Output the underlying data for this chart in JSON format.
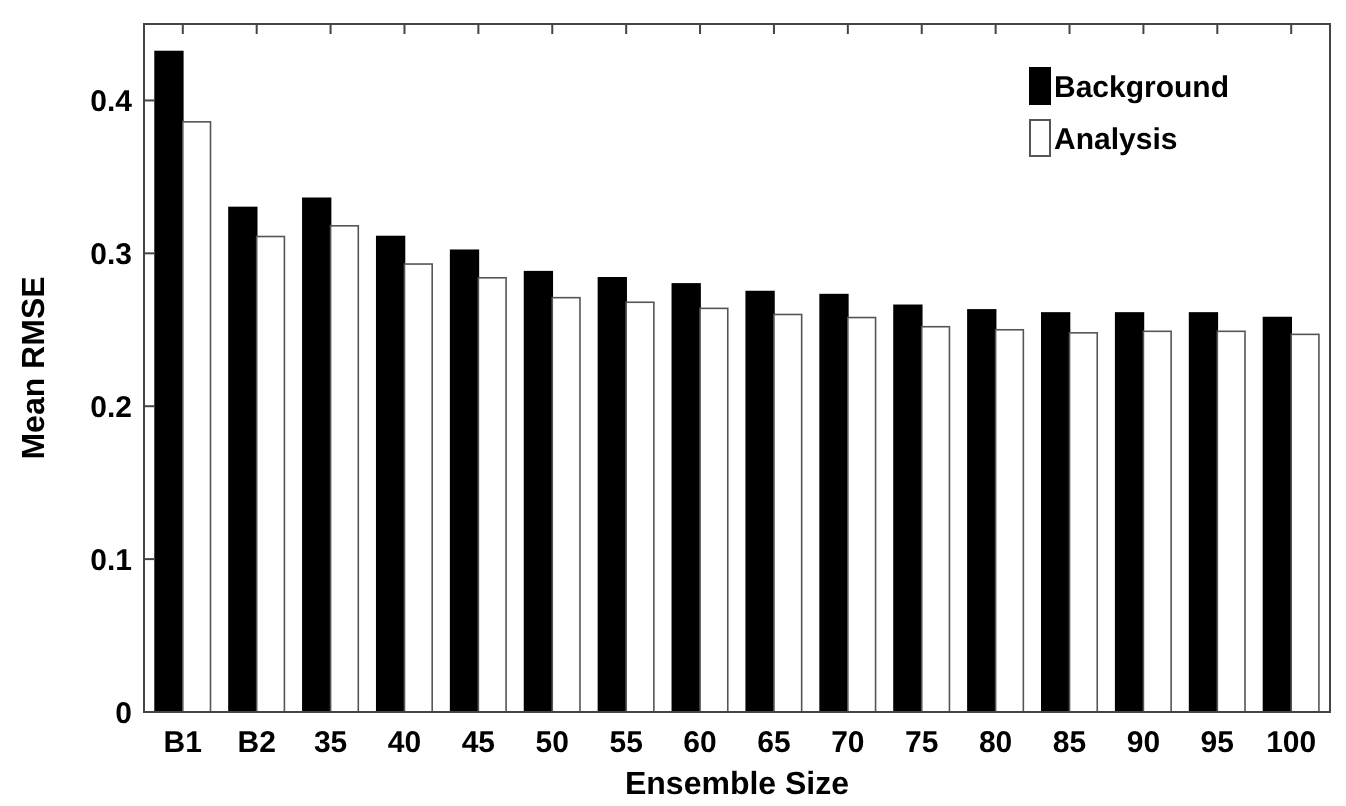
{
  "chart_data": {
    "type": "bar",
    "xlabel": "Ensemble Size",
    "ylabel": "Mean RMSE",
    "categories": [
      "B1",
      "B2",
      "35",
      "40",
      "45",
      "50",
      "55",
      "60",
      "65",
      "70",
      "75",
      "80",
      "85",
      "90",
      "95",
      "100"
    ],
    "series": [
      {
        "name": "Background",
        "color": "#000000",
        "values": [
          0.432,
          0.33,
          0.336,
          0.311,
          0.302,
          0.288,
          0.284,
          0.28,
          0.275,
          0.273,
          0.266,
          0.263,
          0.261,
          0.261,
          0.261,
          0.258
        ]
      },
      {
        "name": "Analysis",
        "color": "#ffffff",
        "values": [
          0.386,
          0.311,
          0.318,
          0.293,
          0.284,
          0.271,
          0.268,
          0.264,
          0.26,
          0.258,
          0.252,
          0.25,
          0.248,
          0.249,
          0.249,
          0.247
        ]
      }
    ],
    "ylim": [
      0,
      0.45
    ],
    "yticks": [
      0,
      0.1,
      0.2,
      0.3,
      0.4
    ],
    "legend": "top right",
    "grid": false
  }
}
